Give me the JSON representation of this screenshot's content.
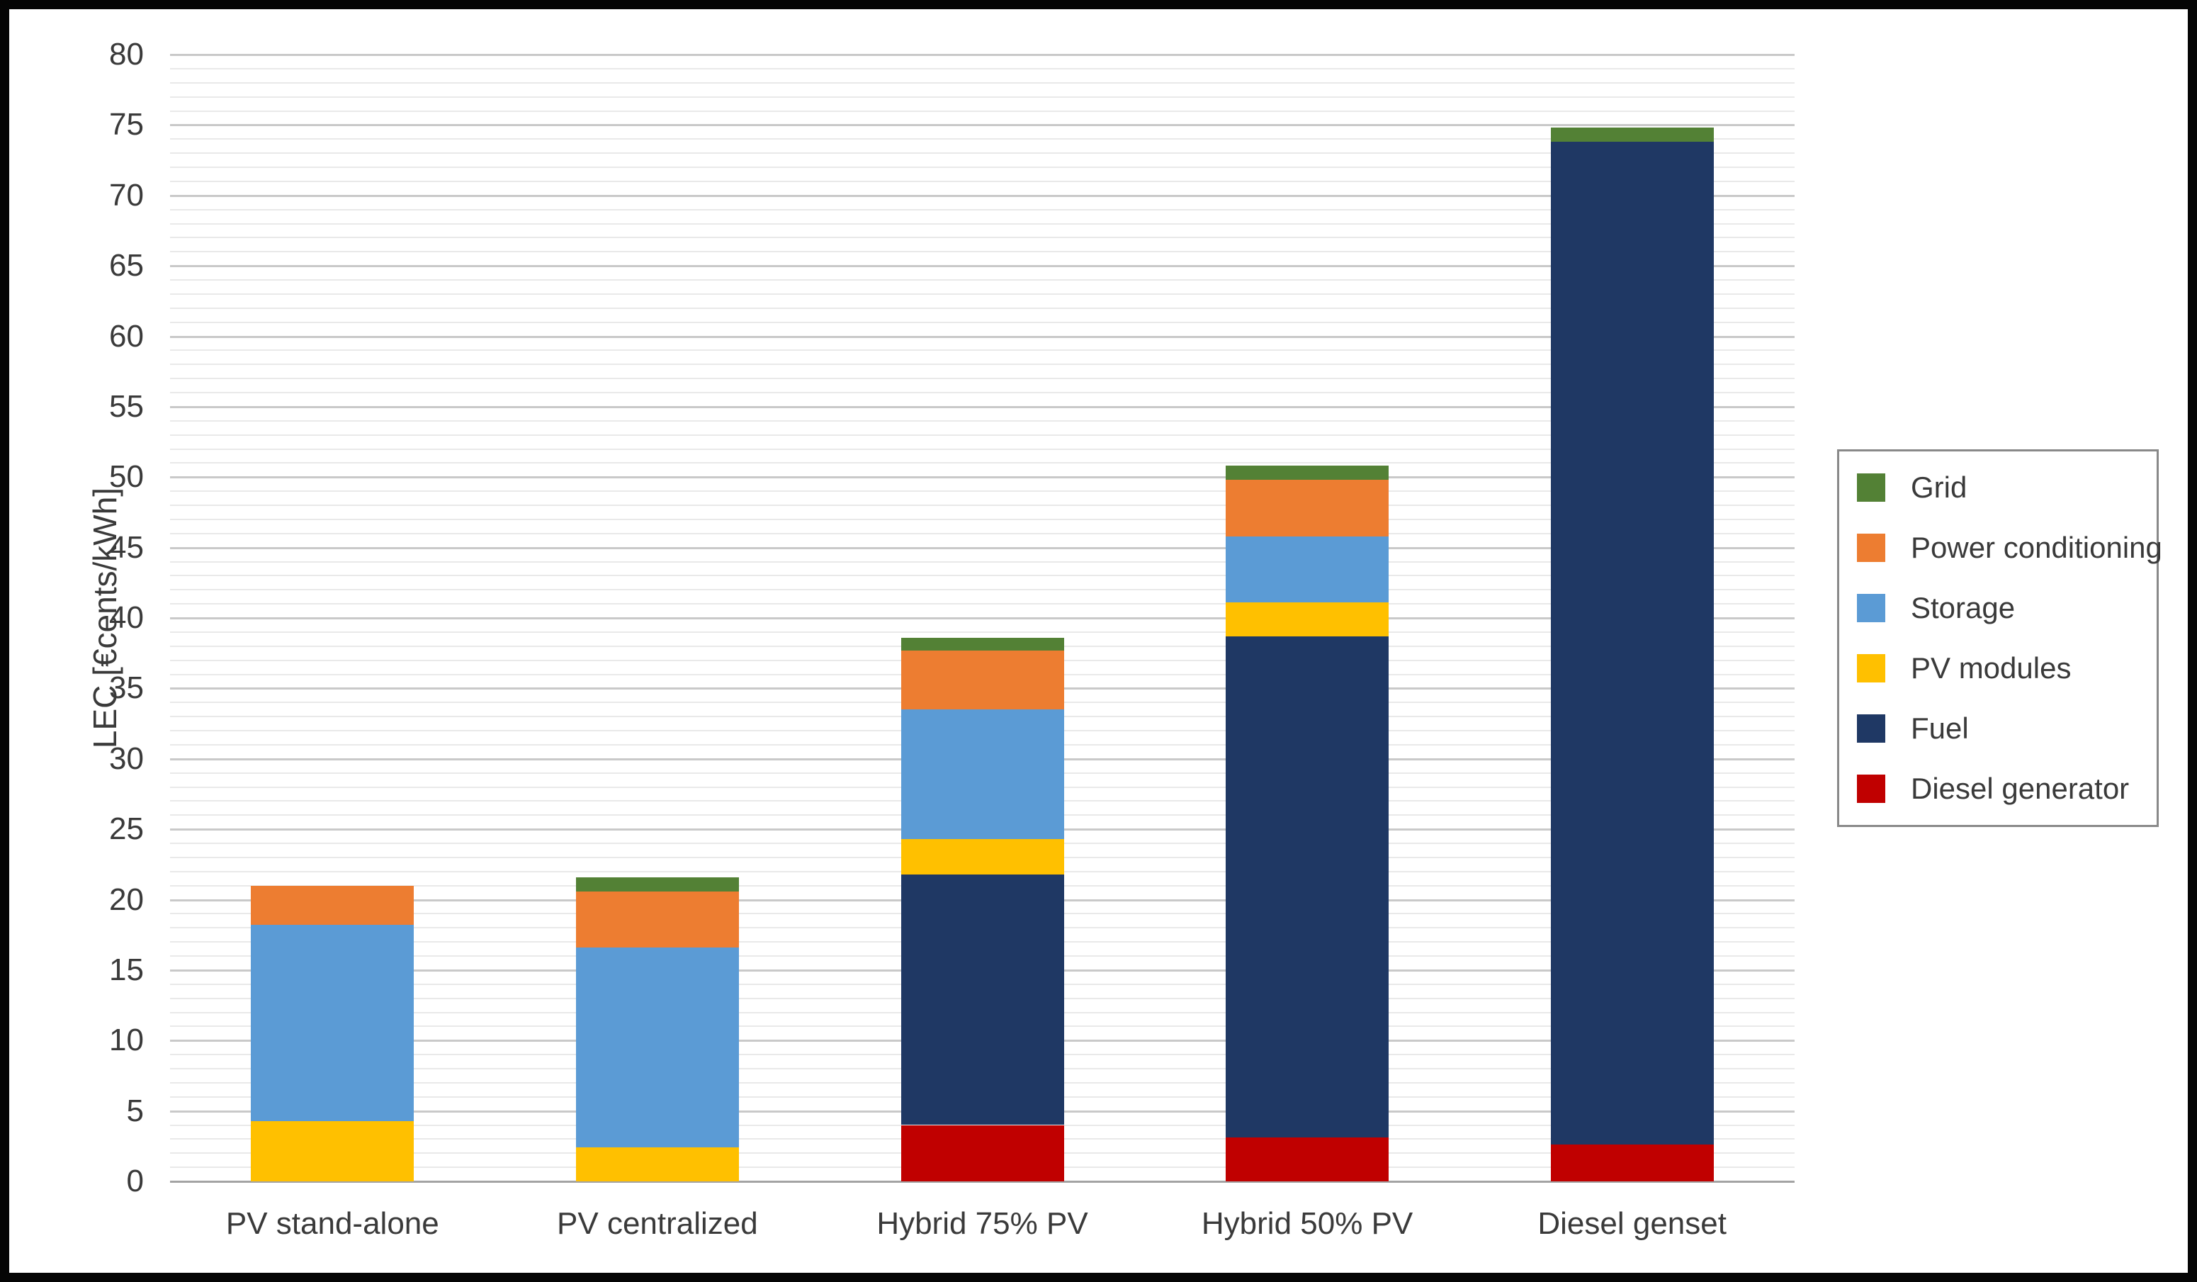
{
  "chart_data": {
    "type": "bar",
    "stacked": true,
    "title": "",
    "xlabel": "",
    "ylabel": "LEC [€cents/kWh]",
    "ylim": [
      0,
      80
    ],
    "ytick_step": 5,
    "yticks": [
      0,
      5,
      10,
      15,
      20,
      25,
      30,
      35,
      40,
      45,
      50,
      55,
      60,
      65,
      70,
      75,
      80
    ],
    "minor_grid_step": 1,
    "grid": "major-and-minor-horizontal",
    "legend_position": "right",
    "legend_order_top_to_bottom": [
      "Grid",
      "Power conditioning",
      "Storage",
      "PV modules",
      "Fuel",
      "Diesel generator"
    ],
    "categories": [
      "PV stand-alone",
      "PV centralized",
      "Hybrid 75% PV",
      "Hybrid 50% PV",
      "Diesel genset"
    ],
    "series": [
      {
        "name": "Diesel generator",
        "color": "#C00000",
        "values": [
          0,
          0,
          4.0,
          3.1,
          2.6
        ]
      },
      {
        "name": "Fuel",
        "color": "#1F3864",
        "values": [
          0,
          0,
          17.8,
          35.6,
          71.2
        ]
      },
      {
        "name": "PV modules",
        "color": "#FFC000",
        "values": [
          4.3,
          2.4,
          2.5,
          2.4,
          0
        ]
      },
      {
        "name": "Storage",
        "color": "#5B9BD5",
        "values": [
          13.9,
          14.2,
          9.2,
          4.7,
          0
        ]
      },
      {
        "name": "Power conditioning",
        "color": "#ED7D31",
        "values": [
          2.8,
          4.0,
          4.2,
          4.0,
          0
        ]
      },
      {
        "name": "Grid",
        "color": "#538135",
        "values": [
          0,
          1.0,
          0.9,
          1.0,
          1.0
        ]
      }
    ],
    "totals": [
      21.0,
      21.6,
      38.6,
      50.8,
      74.8
    ],
    "style": {
      "grid_major_color": "#c9c9c9",
      "grid_minor_color": "#e9e9e9",
      "axis_line_color": "#a3a3a3",
      "text_color": "#3a3a3a",
      "legend_border_color": "#898989",
      "frame_border_color": "#050505",
      "background_color": "#ffffff"
    }
  }
}
